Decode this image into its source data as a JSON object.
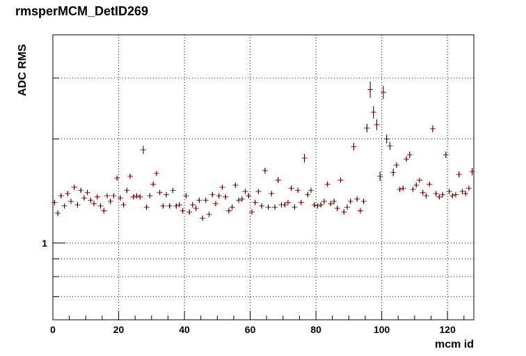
{
  "chart_data": {
    "type": "scatter",
    "title": "rmsperMCM_DetID269",
    "xlabel": "mcm id",
    "ylabel": "ADC RMS",
    "xlim": [
      0,
      128
    ],
    "ylim": [
      0.6,
      4.0
    ],
    "log_y": true,
    "grid": true,
    "legend": "none",
    "marker_color": "#cc0000",
    "error_color": "#000000",
    "x_ticks": [
      0,
      20,
      40,
      60,
      80,
      100,
      120
    ],
    "y_tick_labels": [
      {
        "value": 1,
        "label": "1"
      }
    ],
    "x": [
      0,
      1,
      2,
      3,
      4,
      5,
      6,
      7,
      8,
      9,
      10,
      11,
      12,
      13,
      14,
      15,
      16,
      17,
      18,
      19,
      20,
      21,
      22,
      23,
      24,
      25,
      26,
      27,
      28,
      29,
      30,
      31,
      32,
      33,
      34,
      35,
      36,
      37,
      38,
      39,
      40,
      41,
      42,
      43,
      44,
      45,
      46,
      47,
      48,
      49,
      50,
      51,
      52,
      53,
      54,
      55,
      56,
      57,
      58,
      59,
      60,
      61,
      62,
      63,
      64,
      65,
      66,
      67,
      68,
      69,
      70,
      71,
      72,
      73,
      74,
      75,
      76,
      77,
      78,
      79,
      80,
      81,
      82,
      83,
      84,
      85,
      86,
      87,
      88,
      89,
      90,
      91,
      92,
      93,
      94,
      95,
      96,
      97,
      98,
      99,
      100,
      101,
      102,
      103,
      104,
      105,
      106,
      107,
      108,
      109,
      110,
      111,
      112,
      113,
      114,
      115,
      116,
      117,
      118,
      119,
      120,
      121,
      122,
      123,
      124,
      125,
      126,
      127
    ],
    "y": [
      1.31,
      1.22,
      1.37,
      1.28,
      1.39,
      1.32,
      1.45,
      1.29,
      1.42,
      1.35,
      1.4,
      1.33,
      1.3,
      1.36,
      1.28,
      1.24,
      1.37,
      1.32,
      1.37,
      1.54,
      1.35,
      1.29,
      1.42,
      1.56,
      1.36,
      1.37,
      1.36,
      1.86,
      1.27,
      1.37,
      1.48,
      1.59,
      1.4,
      1.28,
      1.38,
      1.28,
      1.42,
      1.28,
      1.29,
      1.24,
      1.37,
      1.23,
      1.29,
      1.26,
      1.33,
      1.18,
      1.33,
      1.21,
      1.38,
      1.3,
      1.37,
      1.45,
      1.36,
      1.24,
      1.27,
      1.47,
      1.33,
      1.34,
      1.41,
      1.37,
      1.23,
      1.31,
      1.41,
      1.28,
      1.62,
      1.27,
      1.39,
      1.27,
      1.52,
      1.29,
      1.29,
      1.31,
      1.44,
      1.27,
      1.42,
      1.31,
      1.76,
      1.38,
      1.42,
      1.29,
      1.28,
      1.29,
      1.32,
      1.48,
      1.3,
      1.32,
      1.26,
      1.52,
      1.23,
      1.27,
      1.32,
      1.9,
      1.34,
      1.24,
      1.32,
      2.15,
      2.78,
      2.39,
      2.2,
      1.56,
      2.73,
      2.0,
      1.91,
      1.6,
      1.68,
      1.43,
      1.44,
      1.75,
      1.8,
      1.43,
      1.47,
      1.52,
      1.4,
      1.37,
      1.48,
      2.14,
      1.39,
      1.36,
      1.38,
      1.8,
      1.41,
      1.37,
      1.38,
      1.58,
      1.41,
      1.39,
      1.44,
      1.61
    ],
    "err": [
      0.02,
      0.02,
      0.02,
      0.02,
      0.02,
      0.02,
      0.02,
      0.02,
      0.02,
      0.02,
      0.02,
      0.02,
      0.02,
      0.02,
      0.02,
      0.02,
      0.02,
      0.02,
      0.02,
      0.02,
      0.02,
      0.02,
      0.02,
      0.02,
      0.02,
      0.02,
      0.02,
      0.05,
      0.02,
      0.02,
      0.02,
      0.02,
      0.02,
      0.02,
      0.02,
      0.02,
      0.02,
      0.02,
      0.02,
      0.02,
      0.02,
      0.02,
      0.02,
      0.02,
      0.02,
      0.02,
      0.02,
      0.02,
      0.02,
      0.02,
      0.02,
      0.02,
      0.02,
      0.02,
      0.02,
      0.02,
      0.02,
      0.02,
      0.02,
      0.02,
      0.02,
      0.02,
      0.02,
      0.02,
      0.03,
      0.02,
      0.02,
      0.02,
      0.03,
      0.02,
      0.02,
      0.02,
      0.02,
      0.02,
      0.02,
      0.02,
      0.05,
      0.02,
      0.02,
      0.02,
      0.02,
      0.02,
      0.02,
      0.02,
      0.02,
      0.02,
      0.02,
      0.02,
      0.02,
      0.02,
      0.02,
      0.05,
      0.02,
      0.02,
      0.02,
      0.06,
      0.15,
      0.1,
      0.08,
      0.05,
      0.12,
      0.06,
      0.05,
      0.04,
      0.03,
      0.02,
      0.02,
      0.03,
      0.04,
      0.02,
      0.02,
      0.02,
      0.02,
      0.02,
      0.02,
      0.05,
      0.02,
      0.02,
      0.02,
      0.04,
      0.02,
      0.02,
      0.02,
      0.03,
      0.02,
      0.02,
      0.02,
      0.04
    ]
  }
}
